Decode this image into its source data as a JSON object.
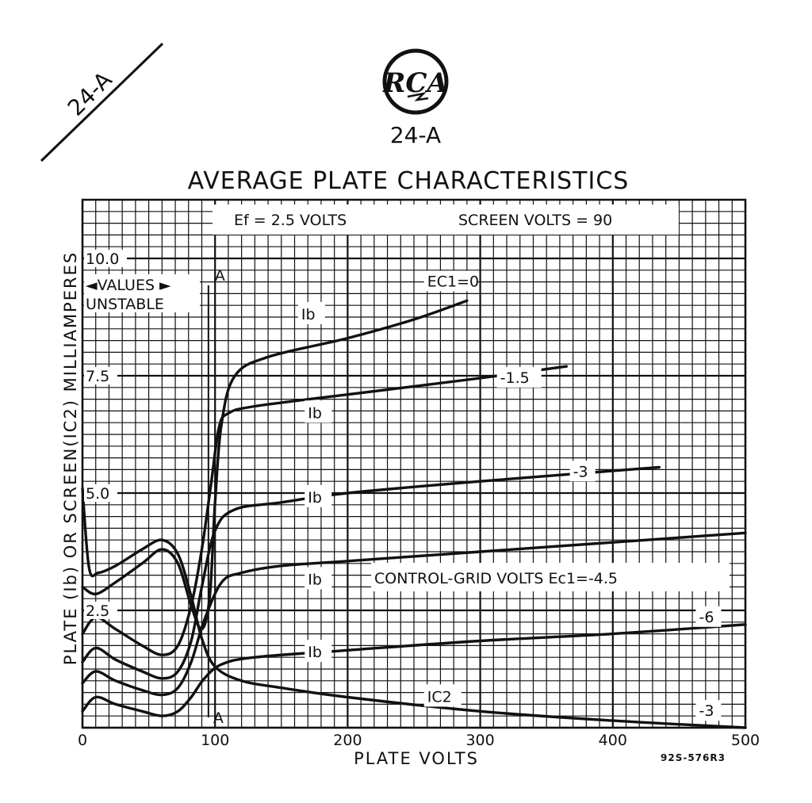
{
  "corner_tag": "24-A",
  "logo_text": "RCA",
  "tube_type": "24-A",
  "chart_data": {
    "type": "line",
    "title": "AVERAGE PLATE CHARACTERISTICS",
    "xlabel": "PLATE VOLTS",
    "ylabel": "PLATE (Ib) OR SCREEN(IC2) MILLIAMPERES",
    "xlim": [
      0,
      500
    ],
    "ylim": [
      0,
      11.25
    ],
    "grid": true,
    "x_ticks": [
      "0",
      "100",
      "200",
      "300",
      "400",
      "500"
    ],
    "y_ticks": [
      {
        "value": 2.5,
        "label": "2.5"
      },
      {
        "value": 5.0,
        "label": "5.0"
      },
      {
        "value": 7.5,
        "label": "7.5"
      },
      {
        "value": 10.0,
        "label": "10.0"
      }
    ],
    "conditions": {
      "filament": "Ef = 2.5 VOLTS",
      "screen": "SCREEN VOLTS = 90"
    },
    "unstable_region": {
      "label_1": "◄VALUES ►",
      "label_2": "UNSTABLE",
      "marker": "A",
      "x": 95
    },
    "control_grid_label": "CONTROL-GRID VOLTS Ec1=-4.5",
    "drawing_code": "92S-576R3",
    "series": [
      {
        "name": "Ec1=0",
        "label": "EC1=0",
        "type": "plate",
        "curve_label": "Ib",
        "curve_label_at": [
          165,
          8.7
        ],
        "label_at": [
          260,
          9.4
        ],
        "x": [
          0,
          10,
          25,
          45,
          60,
          72,
          82,
          90,
          96,
          100,
          105,
          115,
          140,
          200,
          250,
          290
        ],
        "y": [
          3.0,
          2.85,
          3.1,
          3.5,
          3.8,
          3.5,
          2.6,
          2.1,
          2.8,
          4.8,
          6.5,
          7.5,
          7.9,
          8.3,
          8.7,
          9.1
        ]
      },
      {
        "name": "-1.5",
        "label": "-1.5",
        "type": "plate",
        "curve_label": "Ib",
        "curve_label_at": [
          170,
          6.6
        ],
        "label_at": [
          315,
          7.35
        ],
        "x": [
          0,
          10,
          25,
          45,
          60,
          72,
          82,
          90,
          97,
          103,
          110,
          130,
          200,
          300,
          365
        ],
        "y": [
          2.0,
          2.35,
          2.1,
          1.75,
          1.55,
          1.75,
          2.6,
          3.8,
          5.2,
          6.4,
          6.7,
          6.85,
          7.1,
          7.45,
          7.7
        ]
      },
      {
        "name": "-3",
        "label": "-3",
        "type": "plate",
        "curve_label": "Ib",
        "curve_label_at": [
          170,
          4.8
        ],
        "label_at": [
          370,
          5.35
        ],
        "x": [
          0,
          10,
          25,
          45,
          60,
          72,
          82,
          90,
          100,
          115,
          150,
          200,
          300,
          435
        ],
        "y": [
          1.4,
          1.7,
          1.45,
          1.2,
          1.05,
          1.2,
          1.85,
          3.0,
          4.2,
          4.65,
          4.8,
          5.0,
          5.25,
          5.55
        ]
      },
      {
        "name": "-4.5",
        "label": "",
        "type": "plate",
        "curve_label": "Ib",
        "curve_label_at": [
          170,
          3.05
        ],
        "x": [
          0,
          10,
          25,
          45,
          60,
          72,
          82,
          92,
          105,
          120,
          150,
          200,
          300,
          400,
          500
        ],
        "y": [
          0.95,
          1.2,
          1.0,
          0.8,
          0.7,
          0.85,
          1.4,
          2.3,
          3.1,
          3.3,
          3.45,
          3.55,
          3.75,
          3.95,
          4.15
        ]
      },
      {
        "name": "-6",
        "label": "-6",
        "type": "plate",
        "curve_label": "Ib",
        "curve_label_at": [
          170,
          1.5
        ],
        "label_at": [
          465,
          2.25
        ],
        "x": [
          0,
          10,
          25,
          45,
          60,
          72,
          82,
          92,
          105,
          130,
          200,
          300,
          400,
          500
        ],
        "y": [
          0.35,
          0.65,
          0.5,
          0.35,
          0.25,
          0.35,
          0.65,
          1.05,
          1.35,
          1.5,
          1.65,
          1.85,
          2.0,
          2.2
        ]
      },
      {
        "name": "Ic2",
        "label": "-3",
        "type": "screen",
        "curve_label": "IC2",
        "curve_label_at": [
          260,
          0.55
        ],
        "label_at": [
          465,
          0.25
        ],
        "x": [
          0,
          5,
          12,
          25,
          45,
          60,
          72,
          82,
          90,
          100,
          120,
          150,
          200,
          300,
          400,
          500
        ],
        "y": [
          5.1,
          3.4,
          3.3,
          3.45,
          3.8,
          4.0,
          3.7,
          2.8,
          1.9,
          1.3,
          1.0,
          0.85,
          0.65,
          0.35,
          0.15,
          0.0
        ]
      }
    ]
  }
}
